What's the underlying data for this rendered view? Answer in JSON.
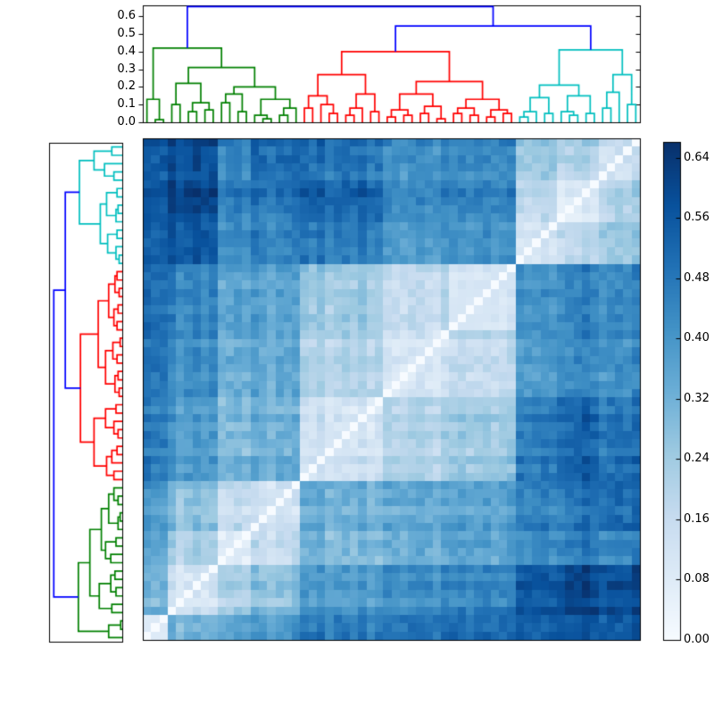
{
  "figure": {
    "background": "#ffffff",
    "frame_color": "#000000",
    "description": "Hierarchically clustered distance matrix heatmap with top and left dendrograms and a colorbar"
  },
  "chart_data": {
    "type": "heatmap",
    "title": "",
    "xlabel": "",
    "ylabel": "",
    "grid": false,
    "colormap": {
      "name": "Blues",
      "anchors": [
        [
          0.0,
          247,
          251,
          255
        ],
        [
          0.125,
          222,
          235,
          247
        ],
        [
          0.25,
          198,
          219,
          239
        ],
        [
          0.375,
          158,
          202,
          225
        ],
        [
          0.5,
          107,
          174,
          214
        ],
        [
          0.625,
          66,
          146,
          198
        ],
        [
          0.75,
          33,
          113,
          181
        ],
        [
          0.875,
          8,
          81,
          156
        ],
        [
          1.0,
          8,
          48,
          107
        ]
      ]
    },
    "colorbar": {
      "min": 0.0,
      "max": 0.661,
      "tick_values": [
        0.0,
        0.08,
        0.16,
        0.24,
        0.32,
        0.4,
        0.48,
        0.56,
        0.64
      ],
      "tick_labels": [
        "0.00",
        "0.08",
        "0.16",
        "0.24",
        "0.32",
        "0.40",
        "0.48",
        "0.56",
        "0.64"
      ],
      "position": "right"
    },
    "matrix": {
      "n": 60,
      "diagonal_value": 0.0,
      "value_range": [
        0.0,
        0.661
      ],
      "row_origin": "bottom",
      "groups": [
        {
          "name": "g0",
          "cluster": "green",
          "size": 3
        },
        {
          "name": "g1",
          "cluster": "green",
          "size": 6
        },
        {
          "name": "g2",
          "cluster": "green",
          "size": 4
        },
        {
          "name": "g3",
          "cluster": "green",
          "size": 6
        },
        {
          "name": "r1",
          "cluster": "red",
          "size": 10
        },
        {
          "name": "r2",
          "cluster": "red",
          "size": 8
        },
        {
          "name": "r3",
          "cluster": "red",
          "size": 8
        },
        {
          "name": "c1",
          "cluster": "cyan",
          "size": 5
        },
        {
          "name": "c2",
          "cluster": "cyan",
          "size": 5
        },
        {
          "name": "c3",
          "cluster": "cyan",
          "size": 5
        }
      ],
      "block_distances": [
        [
          0.05,
          0.3,
          0.36,
          0.38,
          0.46,
          0.48,
          0.5,
          0.52,
          0.55,
          0.53
        ],
        [
          0.3,
          0.11,
          0.22,
          0.26,
          0.38,
          0.42,
          0.44,
          0.55,
          0.6,
          0.57
        ],
        [
          0.36,
          0.22,
          0.09,
          0.16,
          0.3,
          0.33,
          0.36,
          0.42,
          0.46,
          0.44
        ],
        [
          0.38,
          0.26,
          0.16,
          0.11,
          0.32,
          0.34,
          0.36,
          0.44,
          0.48,
          0.5
        ],
        [
          0.46,
          0.38,
          0.3,
          0.32,
          0.12,
          0.2,
          0.24,
          0.46,
          0.52,
          0.48
        ],
        [
          0.48,
          0.42,
          0.33,
          0.34,
          0.2,
          0.1,
          0.16,
          0.38,
          0.42,
          0.4
        ],
        [
          0.5,
          0.44,
          0.36,
          0.36,
          0.24,
          0.16,
          0.11,
          0.4,
          0.44,
          0.42
        ],
        [
          0.52,
          0.55,
          0.42,
          0.44,
          0.46,
          0.38,
          0.4,
          0.1,
          0.18,
          0.24
        ],
        [
          0.55,
          0.6,
          0.46,
          0.48,
          0.52,
          0.42,
          0.44,
          0.18,
          0.09,
          0.2
        ],
        [
          0.53,
          0.57,
          0.44,
          0.5,
          0.48,
          0.4,
          0.42,
          0.24,
          0.2,
          0.12
        ]
      ],
      "leaf_offsets": [
        0.02,
        0.0,
        0.01,
        0.03,
        -0.02,
        0.0,
        0.02,
        -0.01,
        0.01,
        -0.02,
        0.0,
        0.01,
        -0.01,
        0.03,
        0.0,
        -0.02,
        0.01,
        0.0,
        0.02,
        0.02,
        0.0,
        0.03,
        -0.02,
        0.0,
        0.01,
        -0.01,
        0.02,
        -0.02,
        0.0,
        0.01,
        0.0,
        -0.01,
        0.01,
        0.02,
        0.0,
        -0.02,
        0.03,
        0.0,
        0.01,
        -0.01,
        0.0,
        0.01,
        -0.01,
        0.0,
        0.02,
        0.01,
        -0.01,
        0.0,
        0.02,
        0.0,
        -0.02,
        0.0,
        0.01,
        0.03,
        0.0,
        -0.01,
        0.01,
        0.02,
        0.0,
        0.04
      ],
      "jitter_amplitude": 0.07
    },
    "top_dendrogram": {
      "orientation": "top",
      "ymax": 0.662,
      "tick_values": [
        0.0,
        0.1,
        0.2,
        0.3,
        0.4,
        0.5,
        0.6
      ],
      "tick_labels": [
        "0.0",
        "0.1",
        "0.2",
        "0.3",
        "0.4",
        "0.5",
        "0.6"
      ],
      "clusters": [
        {
          "name": "green",
          "color": "#008000",
          "tree": [
            0.42,
            [
              0.13,
              0,
              [
                0.015,
                0,
                0
              ]
            ],
            [
              0.31,
              [
                0.22,
                [
                  0.1,
                  0,
                  0
                ],
                [
                  0.11,
                  [
                    0.06,
                    0,
                    0
                  ],
                  [
                    0.07,
                    0,
                    0
                  ]
                ]
              ],
              [
                0.2,
                [
                  0.16,
                  [
                    0.11,
                    0,
                    0
                  ],
                  [
                    0.06,
                    0,
                    0
                  ]
                ],
                [
                  0.13,
                  [
                    0.04,
                    0,
                    [
                      0.02,
                      0,
                      0
                    ]
                  ],
                  [
                    0.08,
                    [
                      0.04,
                      0,
                      0
                    ],
                    0
                  ]
                ]
              ]
            ]
          ]
        },
        {
          "name": "red",
          "color": "#ff0000",
          "tree": [
            0.4,
            [
              0.27,
              [
                0.15,
                [
                  0.08,
                  0,
                  0
                ],
                [
                  0.1,
                  0,
                  [
                    0.05,
                    0,
                    0
                  ]
                ]
              ],
              [
                0.16,
                [
                  0.08,
                  [
                    0.04,
                    0,
                    0
                  ],
                  0
                ],
                [
                  0.06,
                  0,
                  0
                ]
              ]
            ],
            [
              0.23,
              [
                0.16,
                [
                  0.07,
                  [
                    0.03,
                    0,
                    0
                  ],
                  [
                    0.04,
                    0,
                    0
                  ]
                ],
                [
                  0.09,
                  [
                    0.05,
                    0,
                    0
                  ],
                  [
                    0.02,
                    0,
                    0
                  ]
                ]
              ],
              [
                0.13,
                [
                  0.08,
                  [
                    0.05,
                    0,
                    0
                  ],
                  [
                    0.04,
                    0,
                    0
                  ]
                ],
                [
                  0.07,
                  [
                    0.03,
                    0,
                    0
                  ],
                  [
                    0.05,
                    0,
                    0
                  ]
                ]
              ]
            ]
          ]
        },
        {
          "name": "cyan",
          "color": "#00bfbf",
          "tree": [
            0.41,
            [
              0.21,
              [
                0.14,
                [
                  0.06,
                  [
                    0.03,
                    0,
                    0
                  ],
                  0
                ],
                [
                  0.05,
                  0,
                  0
                ]
              ],
              [
                0.15,
                [
                  0.06,
                  0,
                  [
                    0.04,
                    0,
                    0
                  ]
                ],
                [
                  0.05,
                  0,
                  0
                ]
              ]
            ],
            [
              0.27,
              [
                0.17,
                [
                  0.08,
                  0,
                  0
                ],
                0
              ],
              [
                0.1,
                0,
                0
              ]
            ]
          ]
        }
      ],
      "joins": {
        "color": "#0000ff",
        "pairs": [
          [
            "red",
            "cyan",
            0.545
          ],
          [
            "green",
            "@0",
            0.655
          ]
        ]
      }
    },
    "left_dendrogram": {
      "orientation": "left",
      "same_trees_as_top": true,
      "leaf0_position": "bottom",
      "xmax": 0.7
    }
  }
}
